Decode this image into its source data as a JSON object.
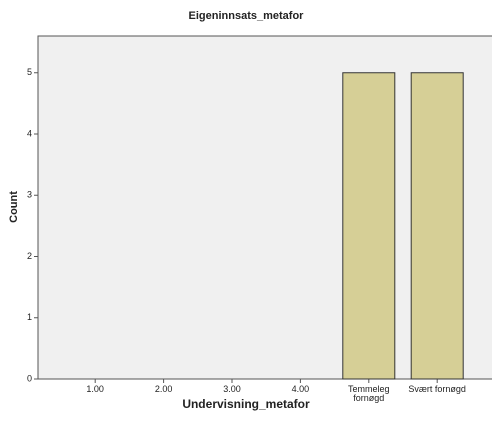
{
  "chart_data": {
    "type": "bar",
    "title": "Eigeninnsats_metafor",
    "x_label": "Undervisning_metafor",
    "y_label": "Count",
    "categories": [
      "1.00",
      "2.00",
      "3.00",
      "4.00",
      "Temmeleg fornøgd",
      "Svært fornøgd"
    ],
    "values": [
      0,
      0,
      0,
      0,
      5,
      5
    ],
    "color": "#d6cf96",
    "ylim": [
      0,
      5.6
    ],
    "yticks": [
      0,
      1,
      2,
      3,
      4,
      5
    ],
    "grid": false
  }
}
